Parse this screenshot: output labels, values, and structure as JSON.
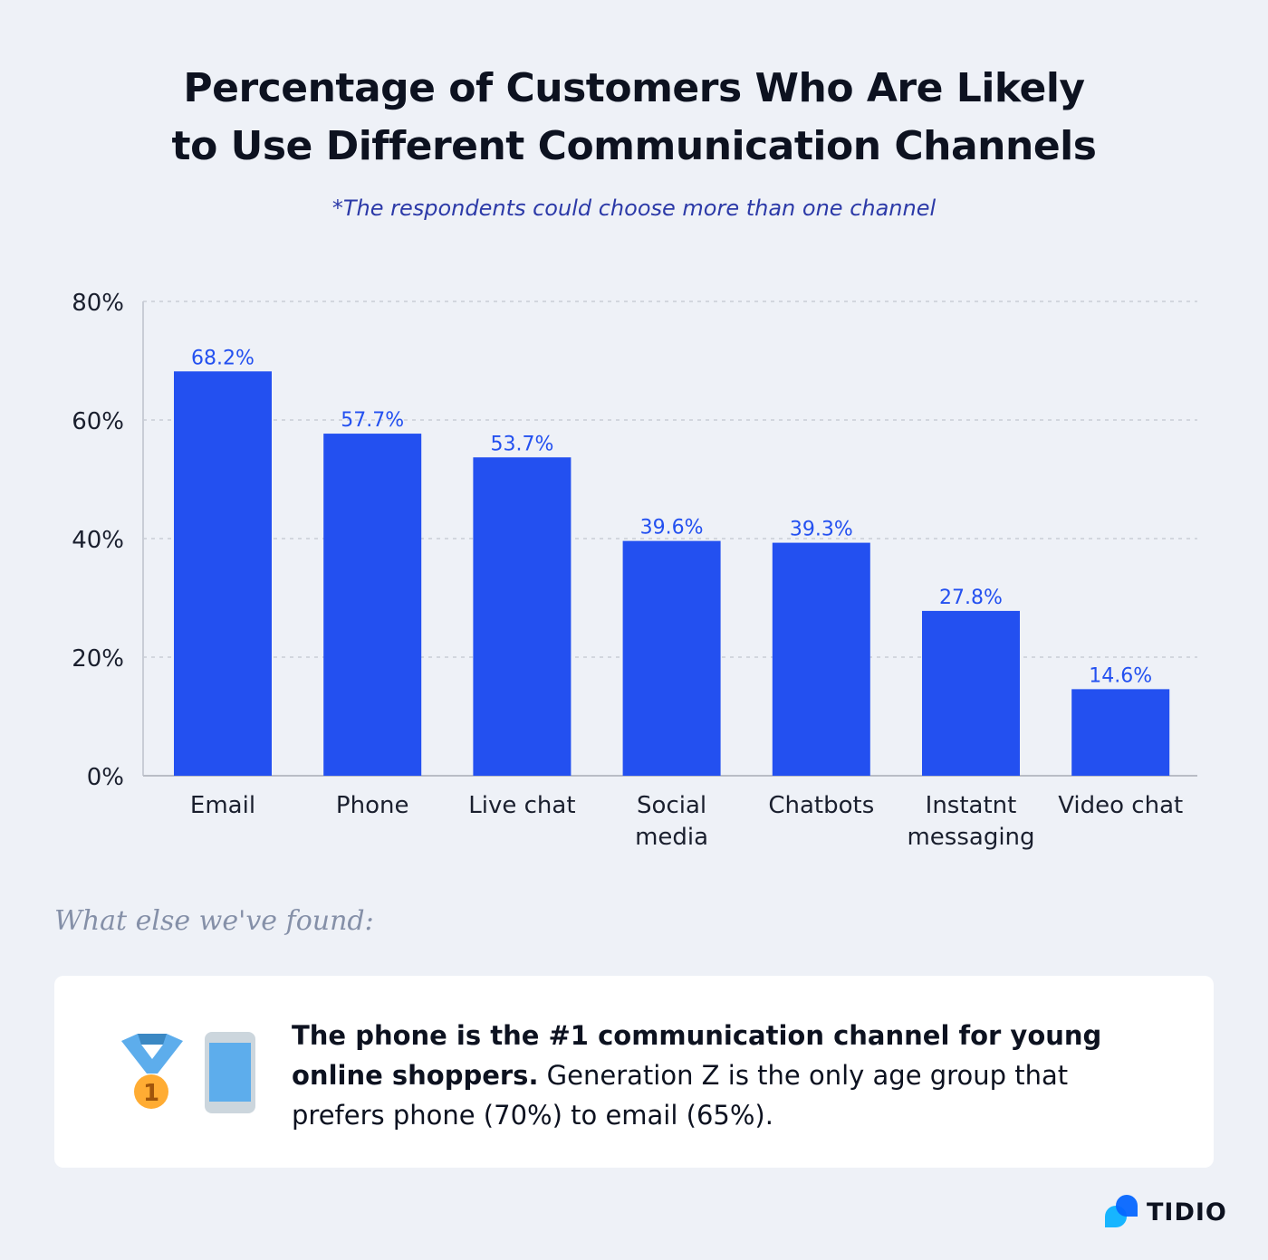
{
  "chart_data": {
    "type": "bar",
    "title": "Percentage of Customers Who Are Likely to Use Different Communication Channels",
    "title_lines": [
      "Percentage of Customers Who Are Likely",
      "to Use Different Communication Channels"
    ],
    "subtitle": "*The respondents could choose more than one channel",
    "categories": [
      "Email",
      "Phone",
      "Live chat",
      "Social media",
      "Chatbots",
      "Instatnt messaging",
      "Video chat"
    ],
    "category_lines": [
      [
        "Email"
      ],
      [
        "Phone"
      ],
      [
        "Live chat"
      ],
      [
        "Social",
        "media"
      ],
      [
        "Chatbots"
      ],
      [
        "Instatnt",
        "messaging"
      ],
      [
        "Video chat"
      ]
    ],
    "values": [
      68.2,
      57.7,
      53.7,
      39.6,
      39.3,
      27.8,
      14.6
    ],
    "data_labels": [
      "68.2%",
      "57.7%",
      "53.7%",
      "39.6%",
      "39.3%",
      "27.8%",
      "14.6%"
    ],
    "yticks": [
      "0%",
      "20%",
      "40%",
      "60%",
      "80%"
    ],
    "ylim": [
      0,
      80
    ],
    "grid": true,
    "bar_color": "#2350f0",
    "label_color": "#2350f0"
  },
  "section_heading": "What else we've found:",
  "finding": {
    "bold": "The phone is the #1 communication channel for young online shoppers.",
    "text": " Generation Z is the only age group that prefers phone (70%) to email (65%).",
    "icons": [
      "first-place-medal-icon",
      "mobile-phone-icon"
    ],
    "medal_number": "1"
  },
  "brand": {
    "name": "TIDIO"
  }
}
